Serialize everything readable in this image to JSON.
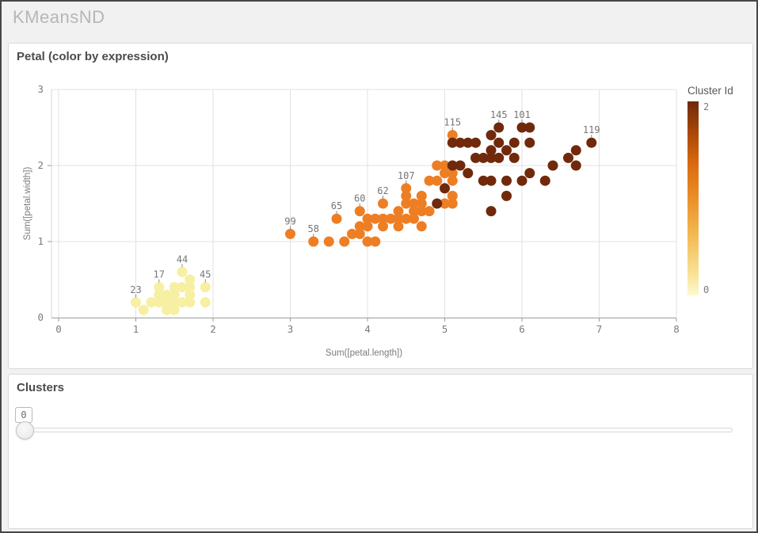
{
  "app": {
    "title": "KMeansND"
  },
  "chart_panel": {
    "title": "Petal (color by expression)"
  },
  "clusters_panel": {
    "title": "Clusters",
    "slider_value": "0"
  },
  "chart_data": {
    "type": "scatter",
    "title": "Petal (color by expression)",
    "xlabel": "Sum([petal.length])",
    "ylabel": "Sum([petal.width])",
    "xlim": [
      0,
      8
    ],
    "ylim": [
      0,
      3
    ],
    "xticks": [
      "0",
      "1",
      "2",
      "3",
      "4",
      "5",
      "6",
      "7",
      "8"
    ],
    "yticks": [
      "0",
      "1",
      "2",
      "3"
    ],
    "grid": true,
    "legend": {
      "title": "Cluster Id",
      "position": "right",
      "max_label": "2",
      "min_label": "0"
    },
    "cluster_colors": {
      "c0": "#f7efa1",
      "c1": "#ee7e23",
      "c2": "#70290b"
    },
    "points": [
      {
        "x": 1.0,
        "y": 0.2,
        "c": 0,
        "l": "23"
      },
      {
        "x": 1.1,
        "y": 0.1,
        "c": 0
      },
      {
        "x": 1.2,
        "y": 0.2,
        "c": 0
      },
      {
        "x": 1.3,
        "y": 0.2,
        "c": 0
      },
      {
        "x": 1.3,
        "y": 0.3,
        "c": 0
      },
      {
        "x": 1.3,
        "y": 0.4,
        "c": 0,
        "l": "17"
      },
      {
        "x": 1.4,
        "y": 0.1,
        "c": 0
      },
      {
        "x": 1.4,
        "y": 0.2,
        "c": 0
      },
      {
        "x": 1.4,
        "y": 0.3,
        "c": 0
      },
      {
        "x": 1.5,
        "y": 0.1,
        "c": 0
      },
      {
        "x": 1.5,
        "y": 0.2,
        "c": 0
      },
      {
        "x": 1.5,
        "y": 0.3,
        "c": 0
      },
      {
        "x": 1.5,
        "y": 0.4,
        "c": 0
      },
      {
        "x": 1.6,
        "y": 0.2,
        "c": 0
      },
      {
        "x": 1.6,
        "y": 0.4,
        "c": 0
      },
      {
        "x": 1.6,
        "y": 0.6,
        "c": 0,
        "l": "44"
      },
      {
        "x": 1.7,
        "y": 0.2,
        "c": 0
      },
      {
        "x": 1.7,
        "y": 0.3,
        "c": 0
      },
      {
        "x": 1.7,
        "y": 0.4,
        "c": 0
      },
      {
        "x": 1.7,
        "y": 0.5,
        "c": 0
      },
      {
        "x": 1.9,
        "y": 0.2,
        "c": 0
      },
      {
        "x": 1.9,
        "y": 0.4,
        "c": 0,
        "l": "45"
      },
      {
        "x": 3.0,
        "y": 1.1,
        "c": 1,
        "l": "99"
      },
      {
        "x": 3.3,
        "y": 1.0,
        "c": 1,
        "l": "58"
      },
      {
        "x": 3.5,
        "y": 1.0,
        "c": 1
      },
      {
        "x": 3.6,
        "y": 1.3,
        "c": 1,
        "l": "65"
      },
      {
        "x": 3.7,
        "y": 1.0,
        "c": 1
      },
      {
        "x": 3.8,
        "y": 1.1,
        "c": 1
      },
      {
        "x": 3.9,
        "y": 1.1,
        "c": 1
      },
      {
        "x": 3.9,
        "y": 1.2,
        "c": 1
      },
      {
        "x": 3.9,
        "y": 1.4,
        "c": 1,
        "l": "60"
      },
      {
        "x": 4.0,
        "y": 1.0,
        "c": 1
      },
      {
        "x": 4.1,
        "y": 1.0,
        "c": 1
      },
      {
        "x": 4.0,
        "y": 1.2,
        "c": 1
      },
      {
        "x": 4.0,
        "y": 1.3,
        "c": 1
      },
      {
        "x": 4.1,
        "y": 1.3,
        "c": 1
      },
      {
        "x": 4.2,
        "y": 1.2,
        "c": 1
      },
      {
        "x": 4.2,
        "y": 1.3,
        "c": 1
      },
      {
        "x": 4.2,
        "y": 1.5,
        "c": 1,
        "l": "62"
      },
      {
        "x": 4.3,
        "y": 1.3,
        "c": 1
      },
      {
        "x": 4.4,
        "y": 1.2,
        "c": 1
      },
      {
        "x": 4.4,
        "y": 1.3,
        "c": 1
      },
      {
        "x": 4.4,
        "y": 1.4,
        "c": 1
      },
      {
        "x": 4.5,
        "y": 1.3,
        "c": 1
      },
      {
        "x": 4.5,
        "y": 1.5,
        "c": 1
      },
      {
        "x": 4.5,
        "y": 1.6,
        "c": 1
      },
      {
        "x": 4.5,
        "y": 1.7,
        "c": 1,
        "l": "107"
      },
      {
        "x": 4.6,
        "y": 1.3,
        "c": 1
      },
      {
        "x": 4.6,
        "y": 1.4,
        "c": 1
      },
      {
        "x": 4.6,
        "y": 1.5,
        "c": 1
      },
      {
        "x": 4.7,
        "y": 1.2,
        "c": 1
      },
      {
        "x": 4.7,
        "y": 1.4,
        "c": 1
      },
      {
        "x": 4.7,
        "y": 1.5,
        "c": 1
      },
      {
        "x": 4.7,
        "y": 1.6,
        "c": 1
      },
      {
        "x": 4.8,
        "y": 1.4,
        "c": 1
      },
      {
        "x": 4.8,
        "y": 1.8,
        "c": 1
      },
      {
        "x": 4.9,
        "y": 1.8,
        "c": 1
      },
      {
        "x": 4.9,
        "y": 2.0,
        "c": 1
      },
      {
        "x": 5.0,
        "y": 1.5,
        "c": 1
      },
      {
        "x": 5.0,
        "y": 1.9,
        "c": 1
      },
      {
        "x": 5.0,
        "y": 2.0,
        "c": 1
      },
      {
        "x": 5.1,
        "y": 1.5,
        "c": 1
      },
      {
        "x": 5.1,
        "y": 1.6,
        "c": 1
      },
      {
        "x": 5.1,
        "y": 1.8,
        "c": 1
      },
      {
        "x": 5.1,
        "y": 1.9,
        "c": 1
      },
      {
        "x": 5.1,
        "y": 2.4,
        "c": 1,
        "l": "115"
      },
      {
        "x": 4.9,
        "y": 1.5,
        "c": 2
      },
      {
        "x": 5.0,
        "y": 1.7,
        "c": 2
      },
      {
        "x": 5.1,
        "y": 2.0,
        "c": 2
      },
      {
        "x": 5.2,
        "y": 2.0,
        "c": 2
      },
      {
        "x": 5.3,
        "y": 1.9,
        "c": 2
      },
      {
        "x": 5.1,
        "y": 2.3,
        "c": 2
      },
      {
        "x": 5.2,
        "y": 2.3,
        "c": 2
      },
      {
        "x": 5.3,
        "y": 2.3,
        "c": 2
      },
      {
        "x": 5.4,
        "y": 2.3,
        "c": 2
      },
      {
        "x": 5.4,
        "y": 2.1,
        "c": 2
      },
      {
        "x": 5.5,
        "y": 2.1,
        "c": 2
      },
      {
        "x": 5.6,
        "y": 2.1,
        "c": 2
      },
      {
        "x": 5.7,
        "y": 2.1,
        "c": 2
      },
      {
        "x": 5.5,
        "y": 1.8,
        "c": 2
      },
      {
        "x": 5.6,
        "y": 1.8,
        "c": 2
      },
      {
        "x": 5.6,
        "y": 1.4,
        "c": 2
      },
      {
        "x": 5.6,
        "y": 2.2,
        "c": 2
      },
      {
        "x": 5.6,
        "y": 2.4,
        "c": 2
      },
      {
        "x": 5.7,
        "y": 2.3,
        "c": 2
      },
      {
        "x": 5.7,
        "y": 2.5,
        "c": 2,
        "l": "145"
      },
      {
        "x": 5.8,
        "y": 1.6,
        "c": 2
      },
      {
        "x": 5.8,
        "y": 1.8,
        "c": 2
      },
      {
        "x": 5.8,
        "y": 2.2,
        "c": 2
      },
      {
        "x": 5.9,
        "y": 2.1,
        "c": 2
      },
      {
        "x": 5.9,
        "y": 2.3,
        "c": 2
      },
      {
        "x": 6.0,
        "y": 1.8,
        "c": 2
      },
      {
        "x": 6.0,
        "y": 2.5,
        "c": 2,
        "l": "101"
      },
      {
        "x": 6.1,
        "y": 1.9,
        "c": 2
      },
      {
        "x": 6.1,
        "y": 2.3,
        "c": 2
      },
      {
        "x": 6.1,
        "y": 2.5,
        "c": 2
      },
      {
        "x": 6.3,
        "y": 1.8,
        "c": 2
      },
      {
        "x": 6.4,
        "y": 2.0,
        "c": 2
      },
      {
        "x": 6.6,
        "y": 2.1,
        "c": 2
      },
      {
        "x": 6.7,
        "y": 2.0,
        "c": 2
      },
      {
        "x": 6.7,
        "y": 2.2,
        "c": 2
      },
      {
        "x": 6.9,
        "y": 2.3,
        "c": 2,
        "l": "119"
      }
    ]
  }
}
